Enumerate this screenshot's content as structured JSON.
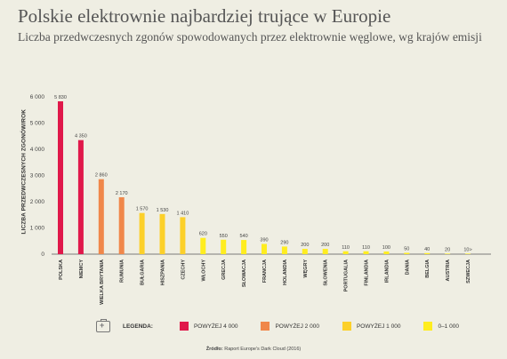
{
  "header": {
    "title": "Polskie elektrownie najbardziej trujące w Europie",
    "subtitle": "Liczba przedwczesnych zgonów spowodowanych przez elektrownie węglowe, wg krajów emisji"
  },
  "chart_data": {
    "type": "bar",
    "title": "Polskie elektrownie najbardziej trujące w Europie",
    "subtitle": "Liczba przedwczesnych zgonów spowodowanych przez elektrownie węglowe, wg krajów emisji",
    "ylabel": "LICZBA PRZEDWCZESNYCH ZGONÓW/ROK",
    "xlabel": "",
    "ylim": [
      0,
      6000
    ],
    "yticks": [
      0,
      1000,
      2000,
      3000,
      4000,
      5000,
      6000
    ],
    "ytick_labels": [
      "0",
      "1 000",
      "2 000",
      "3 000",
      "4 000",
      "5 000",
      "6 000"
    ],
    "grid": false,
    "categories": [
      "POLSKA",
      "NIEMCY",
      "WIELKA BRYTANIA",
      "RUMUNIA",
      "BUŁGARIA",
      "HISZPANIA",
      "CZECHY",
      "WŁOCHY",
      "GRECJA",
      "SŁOWACJA",
      "FRANCJA",
      "HOLANDIA",
      "WĘGRY",
      "SŁOWENIA",
      "PORTUGALIA",
      "FINLANDIA",
      "IRLANDIA",
      "DANIA",
      "BELGIA",
      "AUSTRIA",
      "SZWECJA"
    ],
    "values": [
      5830,
      4350,
      2860,
      2170,
      1570,
      1530,
      1410,
      620,
      550,
      540,
      390,
      290,
      200,
      200,
      110,
      110,
      100,
      50,
      40,
      20,
      10
    ],
    "value_labels": [
      "5 830",
      "4 350",
      "2 860",
      "2 170",
      "1 570",
      "1 530",
      "1 410",
      "620",
      "550",
      "540",
      "390",
      "290",
      "200",
      "200",
      "110",
      "110",
      "100",
      "50",
      "40",
      "20",
      "10>"
    ],
    "colors": [
      "#e0184a",
      "#e0184a",
      "#f0874a",
      "#f0874a",
      "#fcd02a",
      "#fcd02a",
      "#fcd02a",
      "#ffed1f",
      "#ffed1f",
      "#ffed1f",
      "#ffed1f",
      "#ffed1f",
      "#ffed1f",
      "#ffed1f",
      "#ffed1f",
      "#ffed1f",
      "#ffed1f",
      "#ffed1f",
      "#ffed1f",
      "#ffed1f",
      "#ffed1f"
    ],
    "legend_placement": "bottom"
  },
  "legend": {
    "title": "LEGENDA:",
    "items": [
      {
        "label": "POWYŻEJ 4 000",
        "color": "#e0184a"
      },
      {
        "label": "POWYŻEJ 2 000",
        "color": "#f0874a"
      },
      {
        "label": "POWYŻEJ 1 000",
        "color": "#fcd02a"
      },
      {
        "label": "0–1 000",
        "color": "#ffed1f"
      }
    ]
  },
  "source": {
    "label": "Źródło:",
    "text": "Raport Europe's Dark Cloud (2016)"
  }
}
